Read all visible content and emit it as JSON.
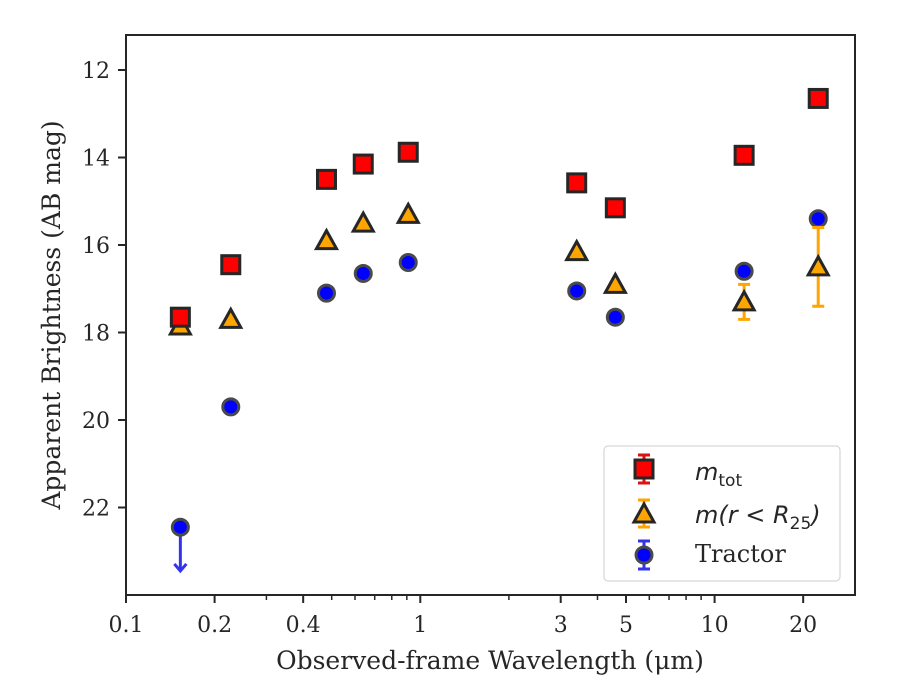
{
  "chart_data": {
    "type": "scatter",
    "xlabel": "Observed-frame Wavelength (μm)",
    "ylabel": "Apparent Brightness (AB mag)",
    "xscale": "log",
    "yaxis_inverted": true,
    "xlim": [
      0.1,
      30
    ],
    "ylim": [
      24.0,
      11.2
    ],
    "xticks": [
      {
        "value": 0.1,
        "label": "0.1"
      },
      {
        "value": 0.2,
        "label": "0.2"
      },
      {
        "value": 0.4,
        "label": "0.4"
      },
      {
        "value": 1,
        "label": "1"
      },
      {
        "value": 3,
        "label": "3"
      },
      {
        "value": 5,
        "label": "5"
      },
      {
        "value": 10,
        "label": "10"
      },
      {
        "value": 20,
        "label": "20"
      }
    ],
    "yticks": [
      {
        "value": 12,
        "label": "12"
      },
      {
        "value": 14,
        "label": "14"
      },
      {
        "value": 16,
        "label": "16"
      },
      {
        "value": 18,
        "label": "18"
      },
      {
        "value": 20,
        "label": "20"
      },
      {
        "value": 22,
        "label": "22"
      }
    ],
    "grid": false,
    "legend_position": "bottom-right",
    "series": [
      {
        "name": "m_tot",
        "marker": "square",
        "color": "#ff0000",
        "errcolor": "#dd1111",
        "points": [
          {
            "x": 0.153,
            "y": 17.65
          },
          {
            "x": 0.227,
            "y": 16.45
          },
          {
            "x": 0.48,
            "y": 14.5
          },
          {
            "x": 0.64,
            "y": 14.15
          },
          {
            "x": 0.91,
            "y": 13.88
          },
          {
            "x": 3.4,
            "y": 14.58
          },
          {
            "x": 4.6,
            "y": 15.15
          },
          {
            "x": 12.6,
            "y": 13.95
          },
          {
            "x": 22.5,
            "y": 12.65
          }
        ]
      },
      {
        "name": "m(r<R25)",
        "marker": "triangle",
        "color": "#ffa500",
        "errcolor": "#ffa500",
        "points": [
          {
            "x": 0.153,
            "y": 17.85
          },
          {
            "x": 0.227,
            "y": 17.7
          },
          {
            "x": 0.48,
            "y": 15.9
          },
          {
            "x": 0.64,
            "y": 15.5
          },
          {
            "x": 0.91,
            "y": 15.3
          },
          {
            "x": 3.4,
            "y": 16.15
          },
          {
            "x": 4.6,
            "y": 16.9
          },
          {
            "x": 12.6,
            "y": 17.3,
            "err": 0.4
          },
          {
            "x": 22.5,
            "y": 16.5,
            "err": 0.9
          }
        ]
      },
      {
        "name": "Tractor",
        "marker": "circle",
        "color": "#0000ff",
        "errcolor": "#3333ee",
        "points": [
          {
            "x": 0.153,
            "y": 22.45,
            "upper_limit": true
          },
          {
            "x": 0.227,
            "y": 19.7
          },
          {
            "x": 0.48,
            "y": 17.1
          },
          {
            "x": 0.64,
            "y": 16.65
          },
          {
            "x": 0.91,
            "y": 16.4
          },
          {
            "x": 3.4,
            "y": 17.05
          },
          {
            "x": 4.6,
            "y": 17.65
          },
          {
            "x": 12.6,
            "y": 16.6
          },
          {
            "x": 22.5,
            "y": 15.4
          }
        ]
      }
    ]
  },
  "legend": {
    "mtot_main": "m",
    "mtot_sub": "tot",
    "mr_prefix": "m(r < R",
    "mr_sub": "25",
    "mr_suffix": ")",
    "tractor": "Tractor"
  }
}
